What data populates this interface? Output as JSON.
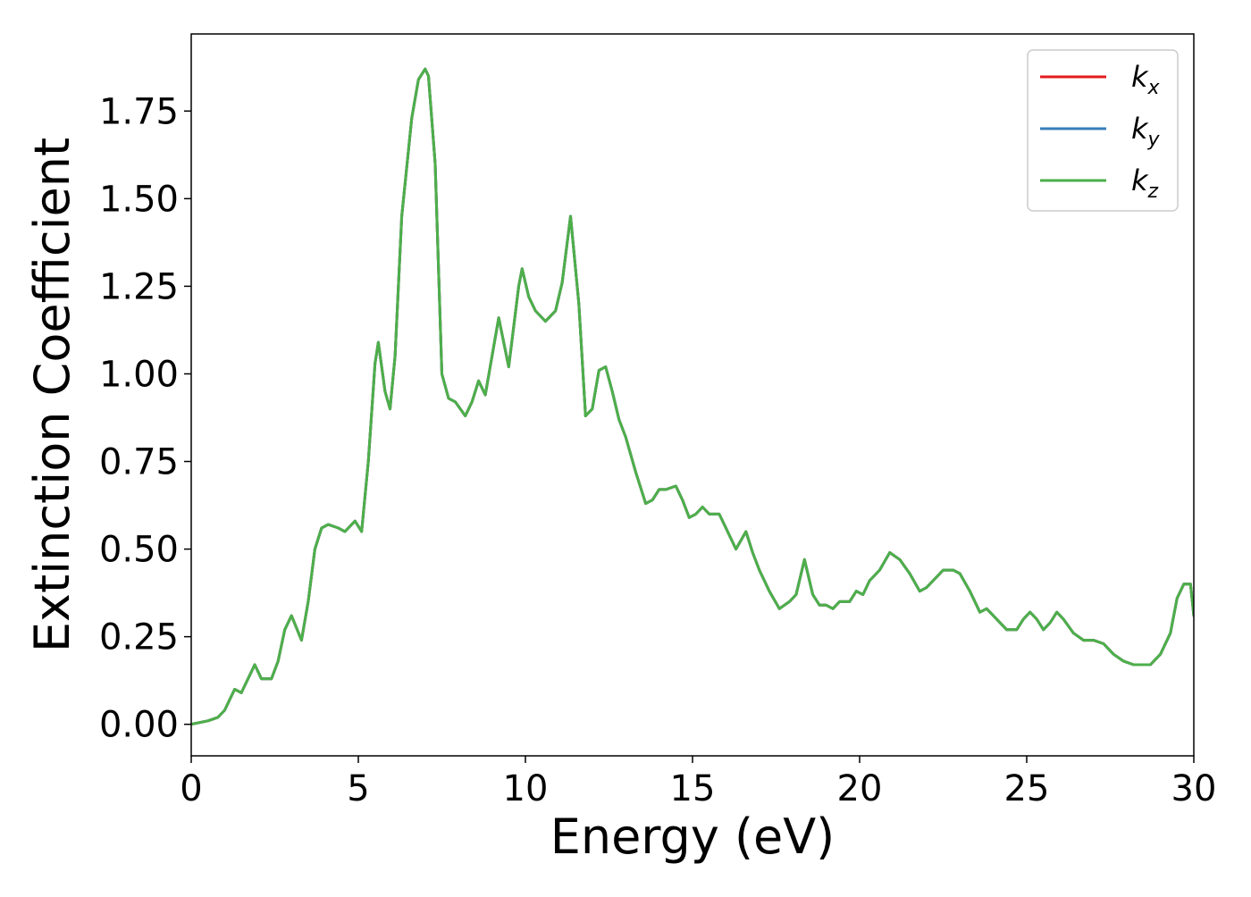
{
  "chart_data": {
    "type": "line",
    "title": "",
    "xlabel": "Energy (eV)",
    "ylabel": "Extinction Coefficient",
    "xlim": [
      0,
      30
    ],
    "ylim": [
      -0.09,
      1.97
    ],
    "xticks": [
      0,
      5,
      10,
      15,
      20,
      25,
      30
    ],
    "xtick_labels": [
      "0",
      "5",
      "10",
      "15",
      "20",
      "25",
      "30"
    ],
    "yticks": [
      0,
      0.25,
      0.5,
      0.75,
      1.0,
      1.25,
      1.5,
      1.75
    ],
    "ytick_labels": [
      "0.00",
      "0.25",
      "0.50",
      "0.75",
      "1.00",
      "1.25",
      "1.50",
      "1.75"
    ],
    "grid": false,
    "legend_position": "top-right",
    "legend": [
      {
        "base": "k",
        "sub": "x",
        "color": "#e41a1c"
      },
      {
        "base": "k",
        "sub": "y",
        "color": "#377eb8"
      },
      {
        "base": "k",
        "sub": "z",
        "color": "#4daf4a"
      }
    ],
    "x": [
      0,
      0.5,
      0.8,
      1.0,
      1.3,
      1.5,
      1.7,
      1.9,
      2.1,
      2.4,
      2.6,
      2.8,
      3.0,
      3.3,
      3.5,
      3.7,
      3.9,
      4.1,
      4.4,
      4.6,
      4.9,
      5.1,
      5.3,
      5.5,
      5.6,
      5.8,
      5.95,
      6.1,
      6.3,
      6.6,
      6.8,
      7.0,
      7.1,
      7.3,
      7.5,
      7.7,
      7.9,
      8.2,
      8.4,
      8.6,
      8.8,
      9.0,
      9.2,
      9.5,
      9.8,
      9.9,
      10.1,
      10.3,
      10.6,
      10.9,
      11.1,
      11.35,
      11.6,
      11.8,
      12.0,
      12.2,
      12.4,
      12.6,
      12.8,
      13.0,
      13.3,
      13.6,
      13.8,
      14.0,
      14.2,
      14.5,
      14.7,
      14.9,
      15.1,
      15.3,
      15.5,
      15.8,
      16.0,
      16.3,
      16.6,
      16.8,
      17.0,
      17.3,
      17.6,
      17.9,
      18.1,
      18.35,
      18.6,
      18.8,
      19.0,
      19.2,
      19.4,
      19.7,
      19.9,
      20.1,
      20.3,
      20.6,
      20.9,
      21.2,
      21.5,
      21.8,
      22.0,
      22.3,
      22.5,
      22.8,
      23.0,
      23.3,
      23.6,
      23.8,
      24.0,
      24.4,
      24.7,
      24.9,
      25.1,
      25.3,
      25.5,
      25.7,
      25.9,
      26.1,
      26.4,
      26.7,
      27.0,
      27.3,
      27.6,
      27.9,
      28.2,
      28.5,
      28.7,
      29.0,
      29.3,
      29.5,
      29.7,
      29.9,
      30.0
    ],
    "series": [
      {
        "name": "k_x",
        "color": "#e41a1c",
        "y": [
          0.0,
          0.01,
          0.02,
          0.04,
          0.1,
          0.09,
          0.13,
          0.17,
          0.13,
          0.13,
          0.18,
          0.27,
          0.31,
          0.24,
          0.35,
          0.5,
          0.56,
          0.57,
          0.56,
          0.55,
          0.58,
          0.55,
          0.75,
          1.03,
          1.09,
          0.95,
          0.9,
          1.05,
          1.45,
          1.73,
          1.84,
          1.87,
          1.85,
          1.6,
          1.0,
          0.93,
          0.92,
          0.88,
          0.92,
          0.98,
          0.94,
          1.05,
          1.16,
          1.02,
          1.25,
          1.3,
          1.22,
          1.18,
          1.15,
          1.18,
          1.26,
          1.45,
          1.2,
          0.88,
          0.9,
          1.01,
          1.02,
          0.95,
          0.87,
          0.82,
          0.72,
          0.63,
          0.64,
          0.67,
          0.67,
          0.68,
          0.64,
          0.59,
          0.6,
          0.62,
          0.6,
          0.6,
          0.56,
          0.5,
          0.55,
          0.49,
          0.44,
          0.38,
          0.33,
          0.35,
          0.37,
          0.47,
          0.37,
          0.34,
          0.34,
          0.33,
          0.35,
          0.35,
          0.38,
          0.37,
          0.41,
          0.44,
          0.49,
          0.47,
          0.43,
          0.38,
          0.39,
          0.42,
          0.44,
          0.44,
          0.43,
          0.38,
          0.32,
          0.33,
          0.31,
          0.27,
          0.27,
          0.3,
          0.32,
          0.3,
          0.27,
          0.29,
          0.32,
          0.3,
          0.26,
          0.24,
          0.24,
          0.23,
          0.2,
          0.18,
          0.17,
          0.17,
          0.17,
          0.2,
          0.26,
          0.36,
          0.4,
          0.4,
          0.31
        ]
      },
      {
        "name": "k_y",
        "color": "#377eb8",
        "y": [
          0.0,
          0.01,
          0.02,
          0.04,
          0.1,
          0.09,
          0.13,
          0.17,
          0.13,
          0.13,
          0.18,
          0.27,
          0.31,
          0.24,
          0.35,
          0.5,
          0.56,
          0.57,
          0.56,
          0.55,
          0.58,
          0.55,
          0.75,
          1.03,
          1.09,
          0.95,
          0.9,
          1.05,
          1.45,
          1.73,
          1.84,
          1.87,
          1.85,
          1.6,
          1.0,
          0.93,
          0.92,
          0.88,
          0.92,
          0.98,
          0.94,
          1.05,
          1.16,
          1.02,
          1.25,
          1.3,
          1.22,
          1.18,
          1.15,
          1.18,
          1.26,
          1.45,
          1.2,
          0.88,
          0.9,
          1.01,
          1.02,
          0.95,
          0.87,
          0.82,
          0.72,
          0.63,
          0.64,
          0.67,
          0.67,
          0.68,
          0.64,
          0.59,
          0.6,
          0.62,
          0.6,
          0.6,
          0.56,
          0.5,
          0.55,
          0.49,
          0.44,
          0.38,
          0.33,
          0.35,
          0.37,
          0.47,
          0.37,
          0.34,
          0.34,
          0.33,
          0.35,
          0.35,
          0.38,
          0.37,
          0.41,
          0.44,
          0.49,
          0.47,
          0.43,
          0.38,
          0.39,
          0.42,
          0.44,
          0.44,
          0.43,
          0.38,
          0.32,
          0.33,
          0.31,
          0.27,
          0.27,
          0.3,
          0.32,
          0.3,
          0.27,
          0.29,
          0.32,
          0.3,
          0.26,
          0.24,
          0.24,
          0.23,
          0.2,
          0.18,
          0.17,
          0.17,
          0.17,
          0.2,
          0.26,
          0.36,
          0.4,
          0.4,
          0.31
        ]
      },
      {
        "name": "k_z",
        "color": "#4daf4a",
        "y": [
          0.0,
          0.01,
          0.02,
          0.04,
          0.1,
          0.09,
          0.13,
          0.17,
          0.13,
          0.13,
          0.18,
          0.27,
          0.31,
          0.24,
          0.35,
          0.5,
          0.56,
          0.57,
          0.56,
          0.55,
          0.58,
          0.55,
          0.75,
          1.03,
          1.09,
          0.95,
          0.9,
          1.05,
          1.45,
          1.73,
          1.84,
          1.87,
          1.85,
          1.6,
          1.0,
          0.93,
          0.92,
          0.88,
          0.92,
          0.98,
          0.94,
          1.05,
          1.16,
          1.02,
          1.25,
          1.3,
          1.22,
          1.18,
          1.15,
          1.18,
          1.26,
          1.45,
          1.2,
          0.88,
          0.9,
          1.01,
          1.02,
          0.95,
          0.87,
          0.82,
          0.72,
          0.63,
          0.64,
          0.67,
          0.67,
          0.68,
          0.64,
          0.59,
          0.6,
          0.62,
          0.6,
          0.6,
          0.56,
          0.5,
          0.55,
          0.49,
          0.44,
          0.38,
          0.33,
          0.35,
          0.37,
          0.47,
          0.37,
          0.34,
          0.34,
          0.33,
          0.35,
          0.35,
          0.38,
          0.37,
          0.41,
          0.44,
          0.49,
          0.47,
          0.43,
          0.38,
          0.39,
          0.42,
          0.44,
          0.44,
          0.43,
          0.38,
          0.32,
          0.33,
          0.31,
          0.27,
          0.27,
          0.3,
          0.32,
          0.3,
          0.27,
          0.29,
          0.32,
          0.3,
          0.26,
          0.24,
          0.24,
          0.23,
          0.2,
          0.18,
          0.17,
          0.17,
          0.17,
          0.2,
          0.26,
          0.36,
          0.4,
          0.4,
          0.31
        ]
      }
    ]
  }
}
